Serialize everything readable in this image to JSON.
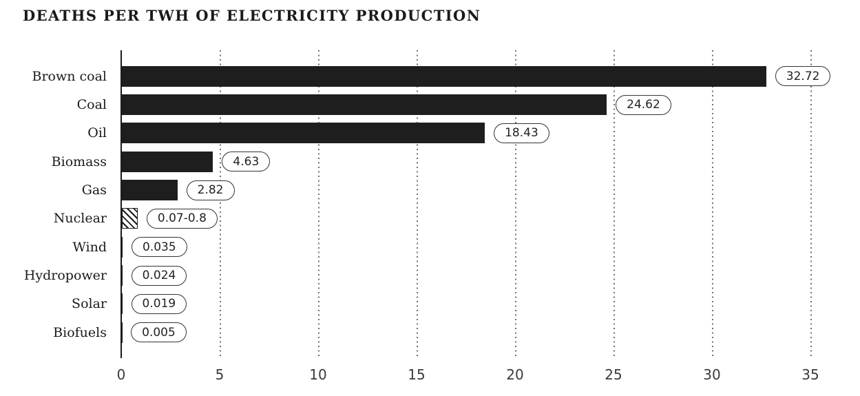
{
  "colors": {
    "background": "#ffffff",
    "bar": "#1e1e1e",
    "text": "#1a1a1a",
    "tick_text": "#3a3a3a",
    "gridline": "#6e6e6e",
    "pill_border": "#333333",
    "pill_background": "#ffffff"
  },
  "chart_data": {
    "type": "bar",
    "orientation": "horizontal",
    "title": "DEATHS PER TWH OF ELECTRICITY PRODUCTION",
    "xlabel": "",
    "ylabel": "",
    "grid": "vertical-dotted",
    "legend": "none",
    "categories": [
      "Brown coal",
      "Coal",
      "Oil",
      "Biomass",
      "Gas",
      "Nuclear",
      "Wind",
      "Hydropower",
      "Solar",
      "Biofuels"
    ],
    "values": [
      32.72,
      24.62,
      18.43,
      4.63,
      2.82,
      "0.07-0.8",
      0.035,
      0.024,
      0.019,
      0.005
    ],
    "items": [
      {
        "label": "Brown coal",
        "value_label": "32.72",
        "bar_value": 32.72,
        "hatched": false
      },
      {
        "label": "Coal",
        "value_label": "24.62",
        "bar_value": 24.62,
        "hatched": false
      },
      {
        "label": "Oil",
        "value_label": "18.43",
        "bar_value": 18.43,
        "hatched": false
      },
      {
        "label": "Biomass",
        "value_label": "4.63",
        "bar_value": 4.63,
        "hatched": false
      },
      {
        "label": "Gas",
        "value_label": "2.82",
        "bar_value": 2.82,
        "hatched": false
      },
      {
        "label": "Nuclear",
        "value_label": "0.07-0.8",
        "bar_value": 0.8,
        "hatched": true
      },
      {
        "label": "Wind",
        "value_label": "0.035",
        "bar_value": 0.035,
        "hatched": false
      },
      {
        "label": "Hydropower",
        "value_label": "0.024",
        "bar_value": 0.024,
        "hatched": false
      },
      {
        "label": "Solar",
        "value_label": "0.019",
        "bar_value": 0.019,
        "hatched": false
      },
      {
        "label": "Biofuels",
        "value_label": "0.005",
        "bar_value": 0.005,
        "hatched": false
      }
    ],
    "xticks": [
      0,
      5,
      10,
      15,
      20,
      25,
      30,
      35
    ],
    "xlim": [
      0,
      37.2
    ]
  }
}
